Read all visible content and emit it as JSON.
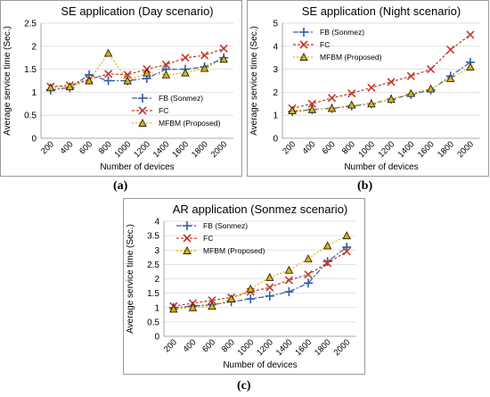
{
  "chart_data": [
    {
      "type": "line",
      "panel_label": "(a)",
      "title": "SE application (Day scenario)",
      "xlabel": "Number of devices",
      "ylabel": "Average service time (Sec.)",
      "x": [
        200,
        400,
        600,
        800,
        1000,
        1200,
        1400,
        1600,
        1800,
        2000
      ],
      "ylim": [
        0,
        2.5
      ],
      "yticks": [
        0,
        0.5,
        1,
        1.5,
        2,
        2.5
      ],
      "grid": true,
      "legend_position": "bottom-right",
      "series": [
        {
          "name": "FB (Sonmez)",
          "color": "#2e5fa6",
          "marker": "plus",
          "dash": "6,2,2,2",
          "values": [
            1.05,
            1.1,
            1.38,
            1.25,
            1.25,
            1.3,
            1.5,
            1.5,
            1.55,
            1.75
          ]
        },
        {
          "name": "FC",
          "color": "#c0392b",
          "marker": "x",
          "dash": "3,2",
          "values": [
            1.12,
            1.15,
            1.28,
            1.4,
            1.38,
            1.5,
            1.6,
            1.75,
            1.8,
            1.95
          ]
        },
        {
          "name": "MFBM (Proposed)",
          "color": "#e0b400",
          "marker": "triangle",
          "dash": "2,2",
          "values": [
            1.1,
            1.12,
            1.25,
            1.85,
            1.25,
            1.42,
            1.38,
            1.42,
            1.52,
            1.72
          ]
        }
      ]
    },
    {
      "type": "line",
      "panel_label": "(b)",
      "title": "SE application (Night scenario)",
      "xlabel": "Number of devices",
      "ylabel": "Average service time (Sec.)",
      "x": [
        200,
        400,
        600,
        800,
        1000,
        1200,
        1400,
        1600,
        1800,
        2000
      ],
      "ylim": [
        0,
        5
      ],
      "yticks": [
        0,
        1,
        2,
        3,
        4,
        5
      ],
      "grid": true,
      "legend_position": "top-left",
      "series": [
        {
          "name": "FB (Sonmez)",
          "color": "#2e5fa6",
          "marker": "plus",
          "dash": "6,2,2,2",
          "values": [
            1.15,
            1.25,
            1.3,
            1.4,
            1.5,
            1.7,
            1.9,
            2.1,
            2.7,
            3.3
          ]
        },
        {
          "name": "FC",
          "color": "#c0392b",
          "marker": "x",
          "dash": "3,2",
          "values": [
            1.3,
            1.5,
            1.75,
            1.95,
            2.2,
            2.45,
            2.7,
            3.0,
            3.85,
            4.5
          ]
        },
        {
          "name": "MFBM (Proposed)",
          "color": "#e0b400",
          "marker": "triangle",
          "dash": "2,2",
          "values": [
            1.2,
            1.25,
            1.3,
            1.45,
            1.5,
            1.7,
            1.95,
            2.15,
            2.6,
            3.1
          ]
        }
      ]
    },
    {
      "type": "line",
      "panel_label": "(c)",
      "title": "AR application (Sonmez scenario)",
      "xlabel": "Number of devices",
      "ylabel": "Average service time (Sec.)",
      "x": [
        200,
        400,
        600,
        800,
        1000,
        1200,
        1400,
        1600,
        1800,
        2000
      ],
      "ylim": [
        0,
        4
      ],
      "yticks": [
        0,
        0.5,
        1,
        1.5,
        2,
        2.5,
        3,
        3.5,
        4
      ],
      "grid": true,
      "legend_position": "top-left",
      "series": [
        {
          "name": "FB (Sonmez)",
          "color": "#2e5fa6",
          "marker": "plus",
          "dash": "6,2,2,2",
          "values": [
            1.0,
            1.05,
            1.1,
            1.2,
            1.3,
            1.4,
            1.55,
            1.85,
            2.6,
            3.1
          ]
        },
        {
          "name": "FC",
          "color": "#c0392b",
          "marker": "x",
          "dash": "3,2",
          "values": [
            1.05,
            1.15,
            1.25,
            1.35,
            1.55,
            1.7,
            1.95,
            2.15,
            2.55,
            2.95
          ]
        },
        {
          "name": "MFBM (Proposed)",
          "color": "#e0b400",
          "marker": "triangle",
          "dash": "2,2",
          "values": [
            0.95,
            1.0,
            1.05,
            1.3,
            1.65,
            2.05,
            2.3,
            2.7,
            3.15,
            3.5
          ]
        }
      ]
    }
  ]
}
